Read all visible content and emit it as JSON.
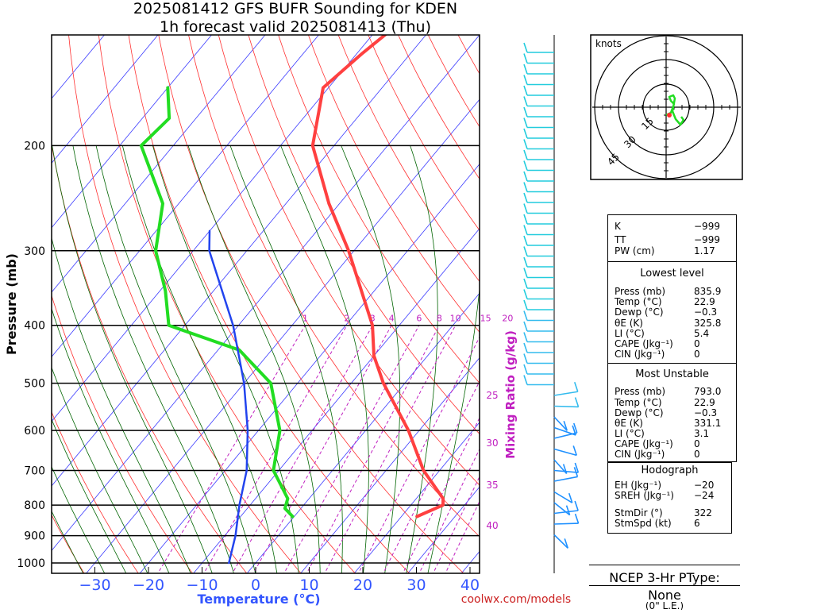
{
  "title": {
    "line1": "2025081412 GFS BUFR Sounding for KDEN",
    "line2": "1h forecast valid 2025081413 (Thu)"
  },
  "chart_data": {
    "type": "line",
    "chart_kind": "skew-T log-P sounding",
    "xlabel": "Temperature (°C)",
    "ylabel": "Pressure (mb)",
    "mixing_ratio_label": "Mixing Ratio (g/kg)",
    "xlim": [
      -40,
      40
    ],
    "ylim": [
      1050,
      100
    ],
    "y_scale": "log",
    "x_ticks": [
      "−30",
      "−20",
      "−10",
      "0",
      "10",
      "20",
      "30",
      "40"
    ],
    "y_ticks": [
      "200",
      "300",
      "400",
      "500",
      "600",
      "700",
      "800",
      "900",
      "1000"
    ],
    "y_tick_values": [
      200,
      300,
      400,
      500,
      600,
      700,
      800,
      900,
      1000
    ],
    "mixing_ratio_ticks": [
      "1",
      "2",
      "3",
      "4",
      "6",
      "8",
      "10",
      "15",
      "20"
    ],
    "side_numbers": [
      "25",
      "30",
      "35",
      "40"
    ],
    "series": [
      {
        "color": "#ff4040",
        "points": [
          {
            "p": 835.9,
            "t": 22.9
          },
          {
            "p": 800,
            "t": 26
          },
          {
            "p": 780,
            "t": 25
          },
          {
            "p": 700,
            "t": 17
          },
          {
            "p": 600,
            "t": 8
          },
          {
            "p": 500,
            "t": -4
          },
          {
            "p": 450,
            "t": -10
          },
          {
            "p": 400,
            "t": -15
          },
          {
            "p": 300,
            "t": -31
          },
          {
            "p": 250,
            "t": -42
          },
          {
            "p": 200,
            "t": -54
          },
          {
            "p": 160,
            "t": -61
          },
          {
            "p": 140,
            "t": -59
          },
          {
            "p": 120,
            "t": -56
          },
          {
            "p": 100,
            "t": -58
          }
        ]
      },
      {
        "color": "#22dd22",
        "points": [
          {
            "p": 835.9,
            "t": -0.3
          },
          {
            "p": 810,
            "t": -3
          },
          {
            "p": 780,
            "t": -4
          },
          {
            "p": 700,
            "t": -11
          },
          {
            "p": 600,
            "t": -16
          },
          {
            "p": 500,
            "t": -25
          },
          {
            "p": 440,
            "t": -36
          },
          {
            "p": 400,
            "t": -53
          },
          {
            "p": 350,
            "t": -59
          },
          {
            "p": 300,
            "t": -67
          },
          {
            "p": 250,
            "t": -73
          },
          {
            "p": 200,
            "t": -86
          },
          {
            "p": 180,
            "t": -85
          },
          {
            "p": 160,
            "t": -90
          }
        ]
      },
      {
        "color": "#2244ee",
        "points": [
          {
            "p": 1000,
            "t": -5
          },
          {
            "p": 900,
            "t": -8
          },
          {
            "p": 800,
            "t": -12
          },
          {
            "p": 700,
            "t": -16
          },
          {
            "p": 600,
            "t": -22
          },
          {
            "p": 500,
            "t": -30
          },
          {
            "p": 400,
            "t": -41
          },
          {
            "p": 300,
            "t": -57
          },
          {
            "p": 278,
            "t": -60
          }
        ]
      }
    ],
    "grid": true
  },
  "hodograph": {
    "units": "knots",
    "rings": [
      "15",
      "30",
      "45"
    ]
  },
  "stats": {
    "k": {
      "label": "K",
      "value": "−999"
    },
    "tt": {
      "label": "TT",
      "value": "−999"
    },
    "pw": {
      "label": "PW (cm)",
      "value": "1.17"
    },
    "lowest": {
      "header": "Lowest level",
      "press": {
        "label": "Press (mb)",
        "value": "835.9"
      },
      "temp": {
        "label": "Temp (°C)",
        "value": "22.9"
      },
      "dewp": {
        "label": "Dewp (°C)",
        "value": "−0.3"
      },
      "thetae": {
        "label": "θE (K)",
        "value": "325.8"
      },
      "li": {
        "label": "LI (°C)",
        "value": "5.4"
      },
      "cape": {
        "label": "CAPE (Jkg⁻¹)",
        "value": "0"
      },
      "cin": {
        "label": "CIN (Jkg⁻¹)",
        "value": "0"
      }
    },
    "most_unstable": {
      "header": "Most Unstable",
      "press": {
        "label": "Press (mb)",
        "value": "793.0"
      },
      "temp": {
        "label": "Temp (°C)",
        "value": "22.9"
      },
      "dewp": {
        "label": "Dewp (°C)",
        "value": "−0.3"
      },
      "thetae": {
        "label": "θE (K)",
        "value": "331.1"
      },
      "li": {
        "label": "LI (°C)",
        "value": "3.1"
      },
      "cape": {
        "label": "CAPE (Jkg⁻¹)",
        "value": "0"
      },
      "cin": {
        "label": "CIN (Jkg⁻¹)",
        "value": "0"
      }
    },
    "hodograph": {
      "header": "Hodograph",
      "eh": {
        "label": "EH (Jkg⁻¹)",
        "value": "−20"
      },
      "sreh": {
        "label": "SREH (Jkg⁻¹)",
        "value": "−24"
      },
      "stmdir": {
        "label": "StmDir (°)",
        "value": "322"
      },
      "stmspd": {
        "label": "StmSpd (kt)",
        "value": "6"
      }
    }
  },
  "ptype": {
    "title": "NCEP 3-Hr PType:",
    "value": "None",
    "note": "(0\" L.E.)"
  },
  "credit": "coolwx.com/models",
  "colors": {
    "temperature": "#ff4040",
    "dewpoint": "#22dd22",
    "parcel": "#2244ee",
    "isotherm": "#3b3bff",
    "dry_adiabat": "#ff3030",
    "moist_adiabat": "#006400",
    "mixing_ratio": "#c020c0",
    "temp_axis": "#3355ff",
    "credit": "#cc2222"
  }
}
